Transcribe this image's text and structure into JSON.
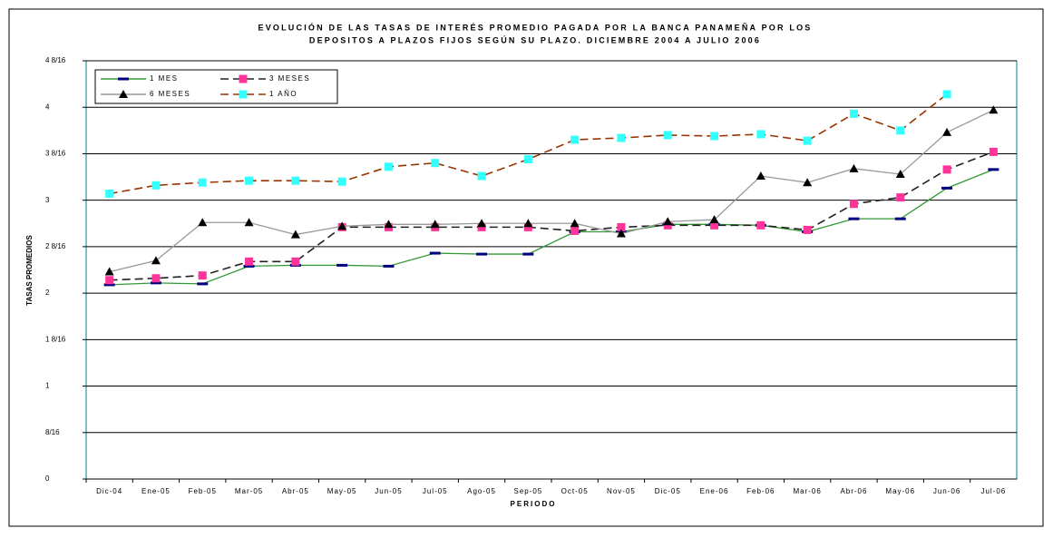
{
  "chart_data": {
    "type": "line",
    "title": [
      "EVOLUCIÓN DE LAS TASAS DE INTERÉS PROMEDIO PAGADA POR LA BANCA PANAMEÑA POR LOS",
      "DEPOSITOS A PLAZOS FIJOS SEGÚN SU PLAZO. DICIEMBRE 2004 A JULIO 2006"
    ],
    "xlabel": "PERIODO",
    "ylabel": "TASAS PROMEDIOS",
    "categories": [
      "Dic-04",
      "Ene-05",
      "Feb-05",
      "Mar-05",
      "Abr-05",
      "May-05",
      "Jun-05",
      "Jul-05",
      "Ago-05",
      "Sep-05",
      "Oct-05",
      "Nov-05",
      "Dic-05",
      "Ene-06",
      "Feb-06",
      "Mar-06",
      "Abr-06",
      "May-06",
      "Jun-06",
      "Jul-06"
    ],
    "ylim": [
      0,
      4.5
    ],
    "yticks": [
      0,
      {
        "value": 0.5,
        "label": "8/16"
      },
      1,
      {
        "value": 1.5,
        "label": "1  8/16"
      },
      2,
      {
        "value": 2.5,
        "label": "2  8/16"
      },
      3,
      {
        "value": 3.5,
        "label": "3  8/16"
      },
      4,
      {
        "value": 4.5,
        "label": "4  8/16"
      }
    ],
    "grid": true,
    "legend": "upper left",
    "series": [
      {
        "name": "1 MES",
        "color": "#339933",
        "marker_color": "#000080",
        "marker": "dash",
        "dashed": false,
        "values": [
          2.09,
          2.11,
          2.1,
          2.29,
          2.3,
          2.3,
          2.29,
          2.43,
          2.42,
          2.42,
          2.66,
          2.66,
          2.74,
          2.74,
          2.73,
          2.66,
          2.8,
          2.8,
          3.13,
          3.33
        ]
      },
      {
        "name": "3 MESES",
        "color": "#222222",
        "marker_color": "#ff3399",
        "marker": "square",
        "dashed": true,
        "values": [
          2.14,
          2.16,
          2.19,
          2.34,
          2.34,
          2.71,
          2.71,
          2.71,
          2.71,
          2.71,
          2.67,
          2.71,
          2.73,
          2.73,
          2.73,
          2.68,
          2.96,
          3.03,
          3.33,
          3.52
        ]
      },
      {
        "name": "6 MESES",
        "color": "#999999",
        "marker_color": "#000000",
        "marker": "triangle",
        "dashed": false,
        "values": [
          2.23,
          2.35,
          2.76,
          2.76,
          2.63,
          2.72,
          2.74,
          2.74,
          2.75,
          2.75,
          2.75,
          2.64,
          2.77,
          2.79,
          3.26,
          3.19,
          3.34,
          3.28,
          3.73,
          3.97
        ]
      },
      {
        "name": "1 AÑO",
        "color": "#993300",
        "marker_color": "#33ffff",
        "marker": "square",
        "dashed": true,
        "values": [
          3.07,
          3.16,
          3.19,
          3.21,
          3.21,
          3.2,
          3.36,
          3.4,
          3.26,
          3.44,
          3.65,
          3.67,
          3.7,
          3.69,
          3.71,
          3.64,
          3.93,
          3.75,
          4.14,
          null
        ]
      }
    ]
  }
}
